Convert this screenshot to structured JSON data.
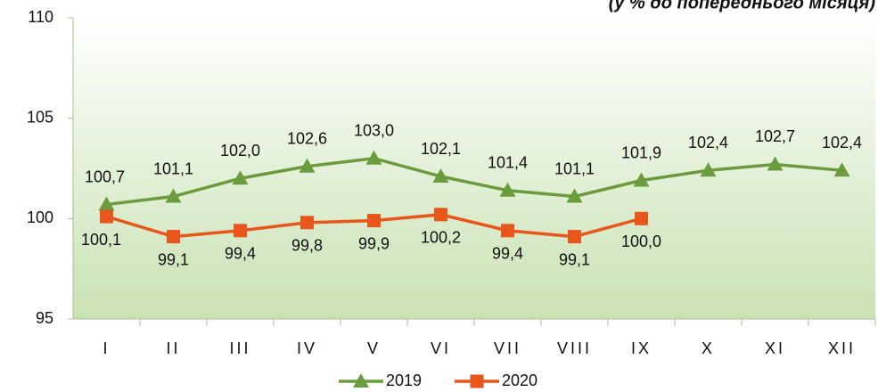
{
  "chart_data": {
    "type": "line",
    "title": "(у % до попереднього місяця)",
    "categories": [
      "I",
      "II",
      "III",
      "IV",
      "V",
      "VI",
      "VII",
      "VIII",
      "IX",
      "X",
      "XI",
      "XII"
    ],
    "series": [
      {
        "name": "2019",
        "color": "#6a9b3c",
        "marker": "triangle",
        "values": [
          100.7,
          101.1,
          102.0,
          102.6,
          103.0,
          102.1,
          101.4,
          101.1,
          101.9,
          102.4,
          102.7,
          102.4
        ],
        "value_labels": [
          "100,7",
          "101,1",
          "102,0",
          "102,6",
          "103,0",
          "102,1",
          "101,4",
          "101,1",
          "101,9",
          "102,4",
          "102,7",
          "102,4"
        ]
      },
      {
        "name": "2020",
        "color": "#e8561c",
        "marker": "square",
        "values": [
          100.1,
          99.1,
          99.4,
          99.8,
          99.9,
          100.2,
          99.4,
          99.1,
          100.0,
          null,
          null,
          null
        ],
        "value_labels": [
          "100,1",
          "99,1",
          "99,4",
          "99,8",
          "99,9",
          "100,2",
          "99,4",
          "99,1",
          "100,0",
          null,
          null,
          null
        ]
      }
    ],
    "ylim": [
      95,
      110
    ],
    "yticks": [
      95,
      100,
      105,
      110
    ],
    "grid": false,
    "legend": "bottom"
  }
}
